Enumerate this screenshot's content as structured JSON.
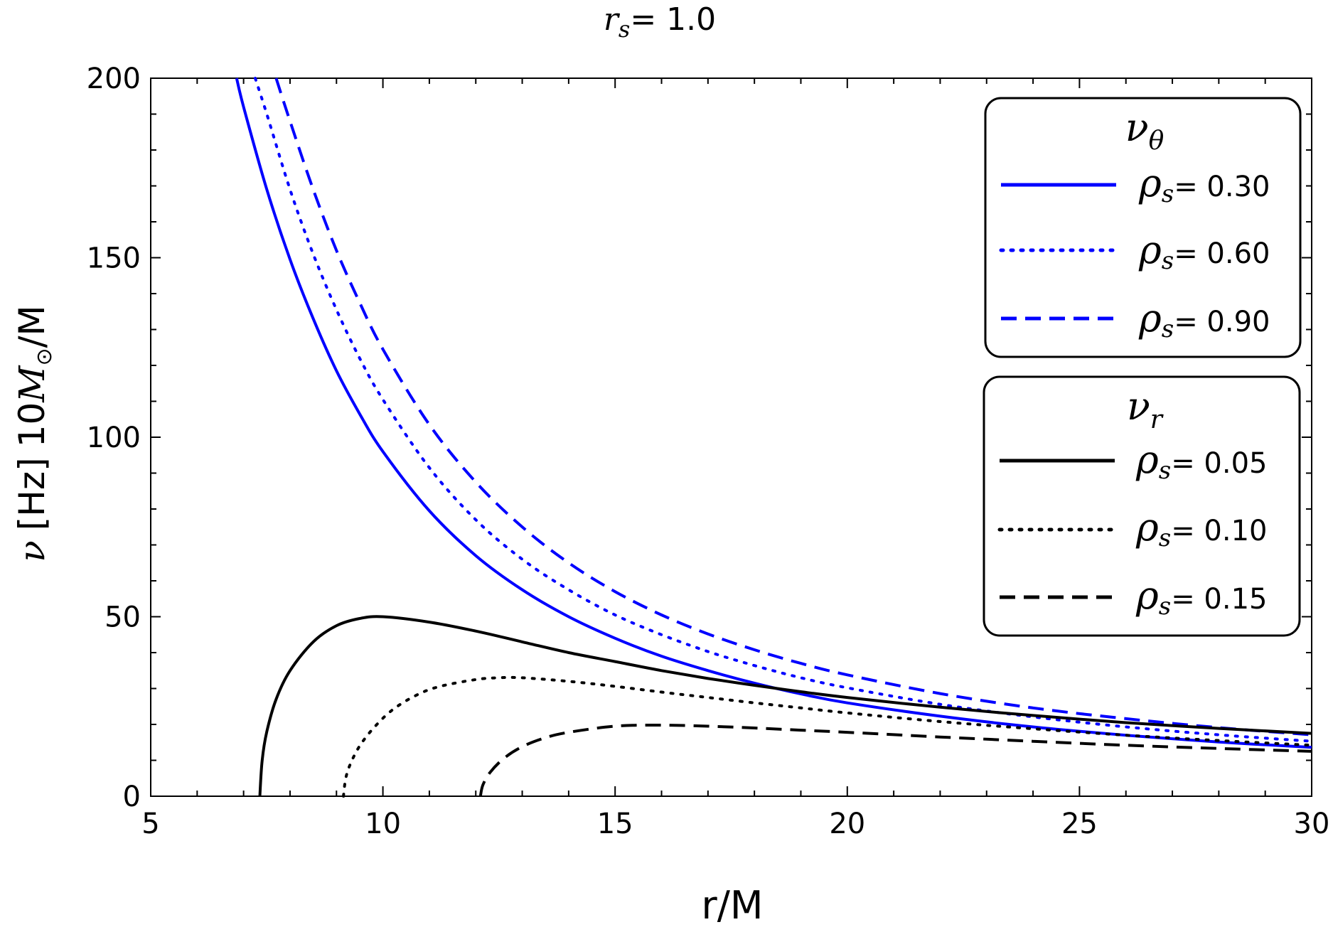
{
  "chart_data": {
    "type": "line",
    "title": {
      "symbol": "r",
      "subscript": "s",
      "text": "= 1.0"
    },
    "xlabel": "r/M",
    "ylabel": {
      "symbol": "ν",
      "unit": "[Hz]",
      "scale": "10",
      "mass": "M",
      "mass_sub": "⊙",
      "tail": "/M"
    },
    "xlim": [
      5,
      30
    ],
    "ylim": [
      0,
      200
    ],
    "xticks": [
      5,
      10,
      15,
      20,
      25,
      30
    ],
    "yticks": [
      0,
      50,
      100,
      150,
      200
    ],
    "legends": [
      {
        "title_symbol": "ν",
        "title_sub": "θ",
        "entries": [
          {
            "symbol": "ρ",
            "sub": "s",
            "text": "= 0.30"
          },
          {
            "symbol": "ρ",
            "sub": "s",
            "text": "= 0.60"
          },
          {
            "symbol": "ρ",
            "sub": "s",
            "text": "= 0.90"
          }
        ]
      },
      {
        "title_symbol": "ν",
        "title_sub": "r",
        "entries": [
          {
            "symbol": "ρ",
            "sub": "s",
            "text": "= 0.05"
          },
          {
            "symbol": "ρ",
            "sub": "s",
            "text": "= 0.10"
          },
          {
            "symbol": "ρ",
            "sub": "s",
            "text": "= 0.15"
          }
        ]
      }
    ],
    "series": [
      {
        "name": "nu_theta rho_s=0.30",
        "color": "#0000ff",
        "dash": "solid",
        "x": [
          6.85,
          7.0,
          7.5,
          8,
          8.5,
          9,
          9.5,
          10,
          11,
          12,
          13,
          14,
          15,
          16,
          17,
          18,
          19,
          20,
          22,
          24,
          26,
          28,
          30
        ],
        "y": [
          200,
          192,
          169,
          149.5,
          133,
          118.5,
          106.5,
          96,
          79.5,
          67,
          57.5,
          50,
          44,
          39,
          35,
          31.5,
          28.5,
          26,
          22.3,
          19.3,
          17,
          15.1,
          13.6
        ]
      },
      {
        "name": "nu_theta rho_s=0.60",
        "color": "#0000ff",
        "dash": "dotted",
        "x": [
          7.25,
          7.5,
          8,
          8.5,
          9,
          9.5,
          10,
          11,
          12,
          13,
          14,
          15,
          16,
          17,
          18,
          19,
          20,
          22,
          24,
          26,
          28,
          30
        ],
        "y": [
          200,
          190,
          169,
          151,
          135.5,
          122,
          110.5,
          91.5,
          77,
          66,
          57.5,
          50.5,
          45,
          40.3,
          36.4,
          33,
          30.2,
          25.6,
          22.1,
          19.3,
          17.1,
          15.3
        ]
      },
      {
        "name": "nu_theta rho_s=0.90",
        "color": "#0000ff",
        "dash": "dashed",
        "x": [
          7.7,
          8,
          8.5,
          9,
          9.5,
          10,
          11,
          12,
          13,
          14,
          15,
          16,
          17,
          18,
          19,
          20,
          22,
          24,
          26,
          28,
          30
        ],
        "y": [
          200,
          188,
          169,
          152,
          137.5,
          124.5,
          103.5,
          87.5,
          75,
          65,
          57,
          50.5,
          45.2,
          40.8,
          37,
          33.8,
          28.6,
          24.6,
          21.6,
          19.1,
          17.1
        ]
      },
      {
        "name": "nu_r rho_s=0.05",
        "color": "#000000",
        "dash": "solid",
        "x": [
          7.35,
          7.4,
          7.5,
          7.7,
          8,
          8.5,
          9,
          9.5,
          10,
          11,
          12,
          13,
          14,
          15,
          16,
          17,
          18,
          19,
          20,
          22,
          24,
          26,
          28,
          30
        ],
        "y": [
          0,
          10,
          18,
          27,
          35,
          43,
          47.5,
          49.5,
          50,
          48.5,
          46,
          43,
          40,
          37.5,
          35,
          32.8,
          30.9,
          29.1,
          27.5,
          24.8,
          22.5,
          20.5,
          18.9,
          17.5
        ]
      },
      {
        "name": "nu_r rho_s=0.10",
        "color": "#000000",
        "dash": "dotted",
        "x": [
          9.15,
          9.2,
          9.3,
          9.5,
          9.8,
          10.2,
          10.7,
          11.2,
          12,
          12.5,
          13,
          14,
          15,
          16,
          17,
          18,
          19,
          20,
          22,
          24,
          26,
          28,
          30
        ],
        "y": [
          0,
          5,
          9,
          14,
          19,
          24,
          28,
          30.5,
          32.5,
          33,
          33,
          32,
          30.6,
          29,
          27.5,
          26,
          24.6,
          23.2,
          20.8,
          18.8,
          17,
          15.5,
          14.2
        ]
      },
      {
        "name": "nu_r rho_s=0.15",
        "color": "#000000",
        "dash": "dashed",
        "x": [
          12.1,
          12.15,
          12.3,
          12.6,
          13,
          13.5,
          14,
          15,
          16,
          17,
          18,
          19,
          20,
          22,
          24,
          26,
          28,
          30
        ],
        "y": [
          0,
          3,
          6.5,
          10.5,
          13.8,
          16.3,
          17.8,
          19.5,
          19.8,
          19.5,
          19,
          18.4,
          17.8,
          16.5,
          15.3,
          14.2,
          13.3,
          12.5
        ]
      }
    ]
  }
}
